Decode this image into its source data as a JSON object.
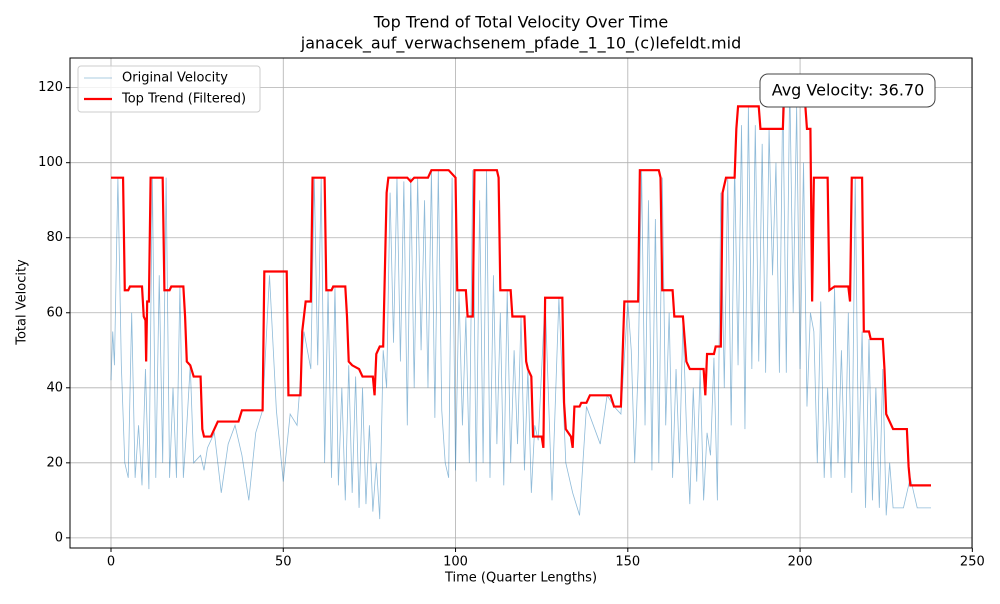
{
  "chart_data": {
    "type": "line",
    "title": "Top Trend of Total Velocity Over Time",
    "subtitle": "janacek_auf_verwachsenem_pfade_1_10_(c)lefeldt.mid",
    "x_label": "Time (Quarter Lengths)",
    "y_label": "Total Velocity",
    "annotation": "Avg Velocity: 36.70",
    "xlim": [
      -11.9,
      249.9
    ],
    "ylim": [
      -2.7,
      127.9
    ],
    "xticks": [
      0,
      50,
      100,
      150,
      200,
      250
    ],
    "yticks": [
      0,
      20,
      40,
      60,
      80,
      100,
      120
    ],
    "grid": true,
    "legend": "upper left",
    "series": [
      {
        "name": "Original Velocity",
        "color": "#1f77b4",
        "width": 0.8,
        "opacity": 0.5,
        "x": [
          0,
          0.5,
          1,
          2,
          3,
          4,
          5,
          6,
          7,
          8,
          9,
          10,
          11,
          12,
          13,
          14,
          15,
          16,
          17,
          18,
          19,
          20,
          21,
          22,
          23,
          24,
          26,
          27,
          28,
          30,
          32,
          34,
          36,
          38,
          40,
          42,
          44,
          46,
          48,
          50,
          52,
          54,
          56,
          58,
          59,
          60,
          61,
          62,
          63,
          64,
          65,
          66,
          67,
          68,
          69,
          70,
          71,
          72,
          73,
          74,
          75,
          76,
          77,
          78,
          79,
          80,
          81,
          82,
          83,
          84,
          85,
          86,
          87,
          88,
          89,
          90,
          91,
          92,
          93,
          94,
          95,
          96,
          97,
          98,
          99,
          100,
          101,
          102,
          103,
          104,
          105,
          106,
          107,
          108,
          109,
          110,
          111,
          112,
          113,
          114,
          115,
          116,
          117,
          118,
          119,
          120,
          121,
          122,
          123,
          124,
          126,
          128,
          130,
          132,
          134,
          136,
          138,
          140,
          142,
          144,
          146,
          148,
          150,
          151,
          152,
          153,
          154,
          155,
          156,
          157,
          158,
          159,
          160,
          161,
          162,
          163,
          164,
          165,
          166,
          167,
          168,
          169,
          170,
          171,
          172,
          173,
          174,
          175,
          176,
          177,
          178,
          179,
          180,
          181,
          182,
          183,
          184,
          185,
          186,
          187,
          188,
          189,
          190,
          191,
          192,
          193,
          194,
          195,
          196,
          197,
          198,
          199,
          200,
          201,
          202,
          203,
          204,
          205,
          206,
          207,
          208,
          209,
          210,
          211,
          212,
          213,
          214,
          215,
          216,
          217,
          218,
          219,
          220,
          221,
          222,
          223,
          224,
          225,
          226,
          227,
          228,
          230,
          232,
          234,
          238
        ],
        "values": [
          42,
          55,
          46,
          96,
          46,
          20,
          16,
          60,
          16,
          30,
          14,
          45,
          13,
          96,
          16,
          70,
          20,
          96,
          16,
          40,
          16,
          67,
          16,
          30,
          46,
          20,
          22,
          18,
          24,
          28,
          12,
          25,
          30,
          22,
          10,
          28,
          34,
          70,
          34,
          15,
          33,
          30,
          55,
          45,
          96,
          46,
          96,
          20,
          66,
          16,
          67,
          14,
          40,
          10,
          46,
          12,
          43,
          8,
          40,
          9,
          30,
          7,
          20,
          5,
          50,
          40,
          92,
          52,
          96,
          47,
          95,
          30,
          96,
          40,
          96,
          50,
          90,
          40,
          98,
          32,
          98,
          34,
          20,
          16,
          96,
          18,
          66,
          30,
          59,
          20,
          98,
          15,
          90,
          20,
          98,
          16,
          70,
          25,
          60,
          14,
          66,
          20,
          50,
          25,
          59,
          18,
          45,
          12,
          30,
          26,
          64,
          10,
          64,
          20,
          12,
          6,
          35,
          30,
          25,
          38,
          35,
          33,
          63,
          50,
          20,
          45,
          98,
          30,
          90,
          18,
          85,
          20,
          96,
          30,
          60,
          16,
          45,
          20,
          58,
          30,
          9,
          40,
          15,
          45,
          10,
          28,
          22,
          48,
          10,
          92,
          40,
          96,
          30,
          100,
          46,
          110,
          29,
          115,
          45,
          110,
          47,
          105,
          44,
          109,
          70,
          100,
          44,
          120,
          44,
          122,
          60,
          115,
          45,
          100,
          35,
          60,
          55,
          20,
          63,
          16,
          40,
          16,
          67,
          20,
          50,
          16,
          60,
          12,
          96,
          20,
          55,
          8,
          53,
          10,
          40,
          8,
          45,
          6,
          20,
          8,
          8,
          8,
          16,
          8,
          8
        ]
      },
      {
        "name": "Top Trend (Filtered)",
        "color": "#ff0000",
        "width": 2.2,
        "opacity": 1,
        "x": [
          0,
          3.5,
          4,
          5,
          5.5,
          9,
          9.5,
          10,
          10.2,
          10.5,
          11,
          11.5,
          15,
          15.5,
          17,
          17.5,
          21,
          21.5,
          22,
          23,
          24,
          26,
          26.5,
          27,
          29,
          30,
          31,
          37,
          38,
          44,
          44.5,
          51,
          51.5,
          55,
          55.5,
          56.5,
          58,
          58.5,
          62,
          62.5,
          64,
          64.5,
          68,
          68.5,
          69,
          70,
          72,
          73,
          76,
          76.5,
          77,
          78,
          79,
          80,
          80.5,
          86,
          87,
          88,
          92,
          93,
          98,
          100,
          100.5,
          103,
          103.5,
          105,
          105.5,
          112,
          112.5,
          113,
          116,
          116.5,
          120,
          120.5,
          121,
          122,
          122.5,
          125,
          125.5,
          126,
          131,
          131.5,
          132,
          133.5,
          134,
          134.5,
          136,
          136.5,
          138,
          139,
          145,
          146,
          148,
          149,
          153,
          153.5,
          159,
          159.5,
          160,
          163,
          163.5,
          166,
          167,
          168,
          172,
          172.5,
          173,
          175,
          175.5,
          177,
          177.5,
          178.5,
          181,
          181.5,
          182,
          188,
          188.5,
          195,
          195.5,
          201,
          202,
          203,
          203.5,
          204,
          208,
          208.5,
          210,
          214,
          214.5,
          215,
          218,
          218.5,
          220,
          220.5,
          224,
          224.5,
          225,
          226,
          227,
          231,
          231.5,
          232,
          238
        ],
        "values": [
          96,
          96,
          66,
          66,
          67,
          67,
          59,
          58,
          47,
          63,
          63,
          96,
          96,
          66,
          66,
          67,
          67,
          59,
          47,
          46,
          43,
          43,
          29,
          27,
          27,
          29,
          31,
          31,
          34,
          34,
          71,
          71,
          38,
          38,
          55,
          63,
          63,
          96,
          96,
          66,
          66,
          67,
          67,
          59,
          47,
          46,
          45,
          43,
          43,
          38,
          49,
          51,
          51,
          92,
          96,
          96,
          95,
          96,
          96,
          98,
          98,
          96,
          66,
          66,
          59,
          59,
          98,
          98,
          96,
          66,
          66,
          59,
          59,
          47,
          45,
          43,
          27,
          27,
          24,
          64,
          64,
          36,
          29,
          27,
          24,
          35,
          35,
          36,
          36,
          38,
          38,
          35,
          35,
          63,
          63,
          98,
          98,
          96,
          66,
          66,
          59,
          59,
          47,
          45,
          45,
          38,
          49,
          49,
          51,
          51,
          92,
          96,
          96,
          109,
          115,
          115,
          109,
          109,
          122,
          122,
          109,
          109,
          63,
          96,
          96,
          66,
          67,
          67,
          63,
          96,
          96,
          55,
          55,
          53,
          53,
          45,
          33,
          31,
          29,
          29,
          19,
          14,
          14
        ]
      }
    ]
  }
}
